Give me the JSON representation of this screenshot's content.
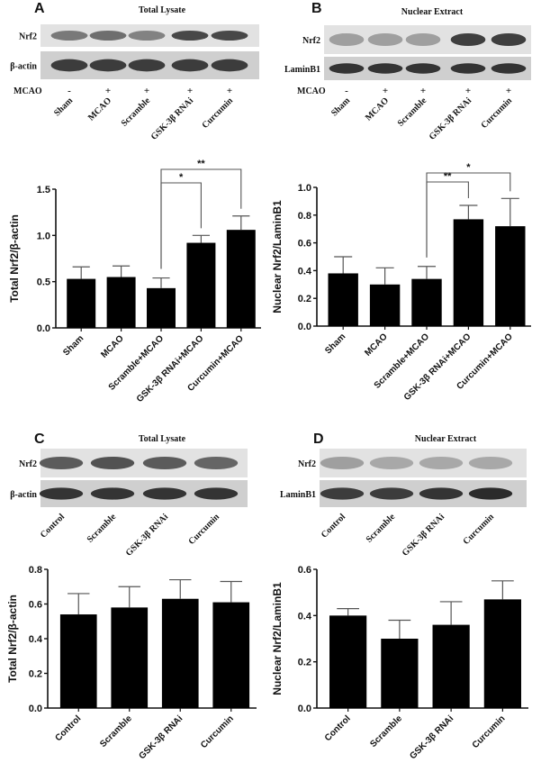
{
  "panels": [
    {
      "letter": "A",
      "title": "Total Lysate",
      "blot_rows": [
        "Nrf2",
        "β-actin"
      ],
      "condition_label": "MCAO",
      "condition_signs": [
        "-",
        "+",
        "+",
        "+",
        "+"
      ],
      "lanes": [
        "Sham",
        "MCAO",
        "Scramble",
        "GSK-3β RNAi",
        "Curcumin"
      ]
    },
    {
      "letter": "B",
      "title": "Nuclear Extract",
      "blot_rows": [
        "Nrf2",
        "LaminB1"
      ],
      "condition_label": "MCAO",
      "condition_signs": [
        "-",
        "+",
        "+",
        "+",
        "+"
      ],
      "lanes": [
        "Sham",
        "MCAO",
        "Scramble",
        "GSK-3β RNAi",
        "Curcumin"
      ]
    },
    {
      "letter": "C",
      "title": "Total Lysate",
      "blot_rows": [
        "Nrf2",
        "β-actin"
      ],
      "lanes": [
        "Control",
        "Scramble",
        "GSK-3β RNAi",
        "Curcumin"
      ]
    },
    {
      "letter": "D",
      "title": "Nuclear Extract",
      "blot_rows": [
        "Nrf2",
        "LaminB1"
      ],
      "lanes": [
        "Control",
        "Scramble",
        "GSK-3β RNAi",
        "Curcumin"
      ]
    }
  ],
  "chart_data": [
    {
      "type": "bar",
      "panel": "A",
      "categories": [
        "Sham",
        "MCAO",
        "Scramble+MCAO",
        "GSK-3β RNAi+MCAO",
        "Curcumin+MCAO"
      ],
      "values": [
        0.53,
        0.55,
        0.43,
        0.92,
        1.06
      ],
      "errors": [
        0.13,
        0.12,
        0.11,
        0.08,
        0.15
      ],
      "ylabel": "Total Nrf2/β-actin",
      "ylim": [
        0,
        1.5
      ],
      "yticks": [
        "0.0",
        "0.5",
        "1.0",
        "1.5"
      ],
      "ytick_values": [
        0,
        0.5,
        1.0,
        1.5
      ],
      "significance": [
        {
          "from": 2,
          "to": 3,
          "label": "*"
        },
        {
          "from": 2,
          "to": 4,
          "label": "**"
        }
      ]
    },
    {
      "type": "bar",
      "panel": "B",
      "categories": [
        "Sham",
        "MCAO",
        "Scramble+MCAO",
        "GSK-3β RNAi+MCAO",
        "Curcumin+MCAO"
      ],
      "values": [
        0.38,
        0.3,
        0.34,
        0.77,
        0.72
      ],
      "errors": [
        0.12,
        0.12,
        0.09,
        0.1,
        0.2
      ],
      "ylabel": "Nuclear Nrf2/LaminB1",
      "ylim": [
        0,
        1.0
      ],
      "yticks": [
        "0.0",
        "0.2",
        "0.4",
        "0.6",
        "0.8",
        "1.0"
      ],
      "ytick_values": [
        0,
        0.2,
        0.4,
        0.6,
        0.8,
        1.0
      ],
      "significance": [
        {
          "from": 2,
          "to": 3,
          "label": "**"
        },
        {
          "from": 2,
          "to": 4,
          "label": "*"
        }
      ]
    },
    {
      "type": "bar",
      "panel": "C",
      "categories": [
        "Control",
        "Scramble",
        "GSK-3β RNAi",
        "Curcumin"
      ],
      "values": [
        0.54,
        0.58,
        0.63,
        0.61
      ],
      "errors": [
        0.12,
        0.12,
        0.11,
        0.12
      ],
      "ylabel": "Total Nrf2/β-actin",
      "ylim": [
        0,
        0.8
      ],
      "yticks": [
        "0.0",
        "0.2",
        "0.4",
        "0.6",
        "0.8"
      ],
      "ytick_values": [
        0,
        0.2,
        0.4,
        0.6,
        0.8
      ],
      "significance": []
    },
    {
      "type": "bar",
      "panel": "D",
      "categories": [
        "Control",
        "Scramble",
        "GSK-3β RNAi",
        "Curcumin"
      ],
      "values": [
        0.4,
        0.3,
        0.36,
        0.47
      ],
      "errors": [
        0.03,
        0.08,
        0.1,
        0.08
      ],
      "ylabel": "Nuclear Nrf2/LaminB1",
      "ylim": [
        0,
        0.6
      ],
      "yticks": [
        "0.0",
        "0.2",
        "0.4",
        "0.6"
      ],
      "ytick_values": [
        0,
        0.2,
        0.4,
        0.6
      ],
      "significance": []
    }
  ]
}
